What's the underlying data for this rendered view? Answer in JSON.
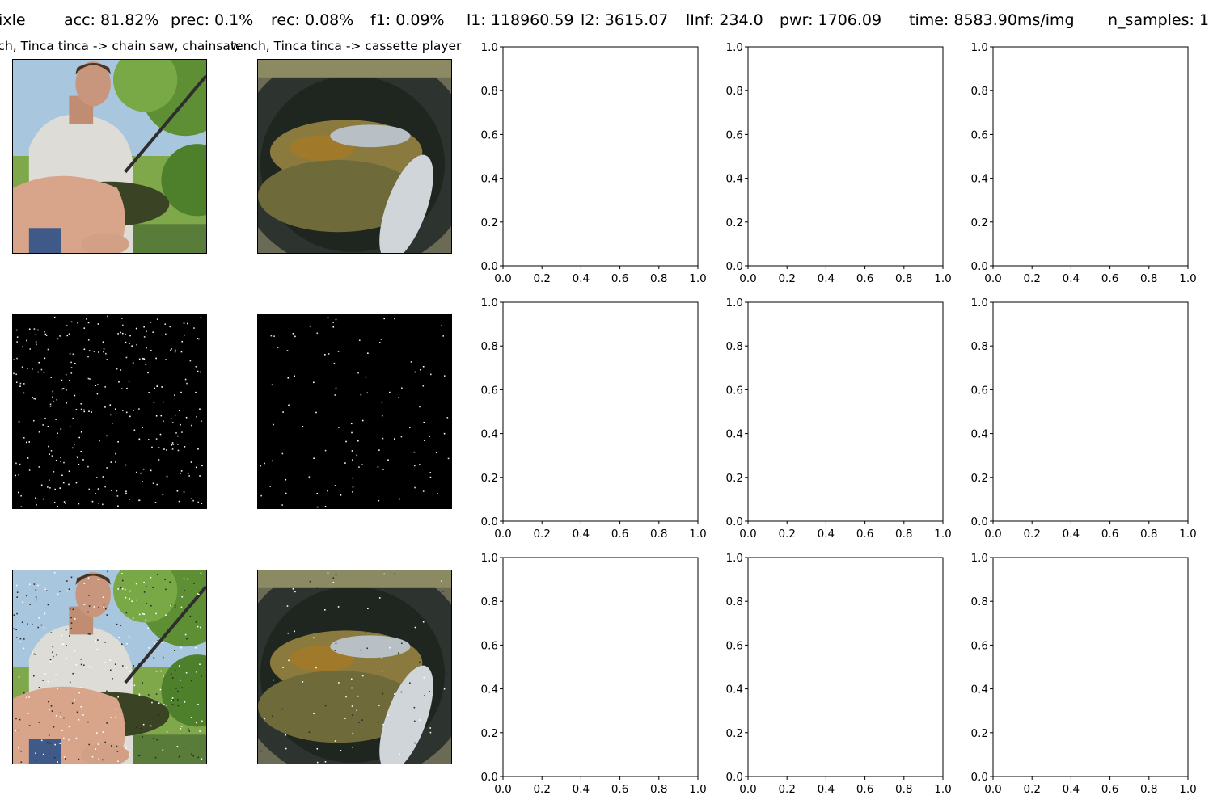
{
  "header": {
    "method": "Pixle",
    "acc": "acc: 81.82%",
    "prec": "prec: 0.1%",
    "rec": "rec: 0.08%",
    "f1": "f1: 0.09%",
    "l1": "l1: 118960.59",
    "l2": "l2: 3615.07",
    "linf": "lInf: 234.0",
    "pwr": "pwr: 1706.09",
    "time": "time: 8583.90ms/img",
    "n_samples": "n_samples: 1"
  },
  "panel_titles": [
    "tench, Tinca tinca -> chain saw, chainsaw",
    "tench, Tinca tinca -> cassette player"
  ],
  "image_panels": [
    {
      "row": "original",
      "subject": "man holding a tench beside trees"
    },
    {
      "row": "original",
      "subject": "tench and roach in a landing net"
    },
    {
      "row": "perturbation-mask",
      "subject": "black mask with scattered white pixels"
    },
    {
      "row": "perturbation-mask",
      "subject": "black mask with scattered white pixels"
    },
    {
      "row": "adversarial",
      "subject": "man holding a tench beside trees"
    },
    {
      "row": "adversarial",
      "subject": "tench and roach in a landing net"
    }
  ],
  "empty_axes": {
    "xlim": [
      0.0,
      1.0
    ],
    "ylim": [
      0.0,
      1.0
    ],
    "ticks": [
      "0.0",
      "0.2",
      "0.4",
      "0.6",
      "0.8",
      "1.0"
    ],
    "count": 9
  },
  "colors": {
    "background": "#ffffff",
    "axis": "#000000",
    "mask": "#000000",
    "mask_pixel": "#ffffff"
  }
}
